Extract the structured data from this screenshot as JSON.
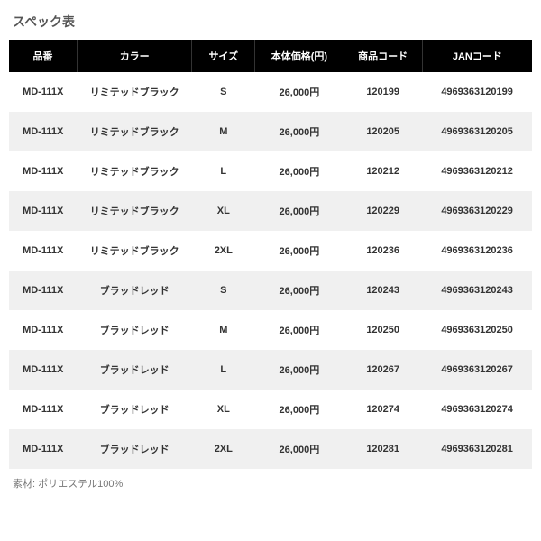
{
  "title": "スペック表",
  "footnote": "素材: ポリエステル100%",
  "table": {
    "type": "table",
    "background_color": "#ffffff",
    "header_bg": "#000000",
    "header_fg": "#ffffff",
    "row_odd_bg": "#ffffff",
    "row_even_bg": "#f0f0f0",
    "text_color": "#333333",
    "font_size_header": 11,
    "font_size_cell": 11,
    "cell_font_weight": "bold",
    "columns": [
      {
        "label": "品番",
        "width_pct": 13,
        "align": "center"
      },
      {
        "label": "カラー",
        "width_pct": 22,
        "align": "center"
      },
      {
        "label": "サイズ",
        "width_pct": 12,
        "align": "center"
      },
      {
        "label": "本体価格(円)",
        "width_pct": 17,
        "align": "center"
      },
      {
        "label": "商品コード",
        "width_pct": 15,
        "align": "center"
      },
      {
        "label": "JANコード",
        "width_pct": 21,
        "align": "center"
      }
    ],
    "rows": [
      [
        "MD-111X",
        "リミテッドブラック",
        "S",
        "26,000円",
        "120199",
        "4969363120199"
      ],
      [
        "MD-111X",
        "リミテッドブラック",
        "M",
        "26,000円",
        "120205",
        "4969363120205"
      ],
      [
        "MD-111X",
        "リミテッドブラック",
        "L",
        "26,000円",
        "120212",
        "4969363120212"
      ],
      [
        "MD-111X",
        "リミテッドブラック",
        "XL",
        "26,000円",
        "120229",
        "4969363120229"
      ],
      [
        "MD-111X",
        "リミテッドブラック",
        "2XL",
        "26,000円",
        "120236",
        "4969363120236"
      ],
      [
        "MD-111X",
        "ブラッドレッド",
        "S",
        "26,000円",
        "120243",
        "4969363120243"
      ],
      [
        "MD-111X",
        "ブラッドレッド",
        "M",
        "26,000円",
        "120250",
        "4969363120250"
      ],
      [
        "MD-111X",
        "ブラッドレッド",
        "L",
        "26,000円",
        "120267",
        "4969363120267"
      ],
      [
        "MD-111X",
        "ブラッドレッド",
        "XL",
        "26,000円",
        "120274",
        "4969363120274"
      ],
      [
        "MD-111X",
        "ブラッドレッド",
        "2XL",
        "26,000円",
        "120281",
        "4969363120281"
      ]
    ]
  }
}
